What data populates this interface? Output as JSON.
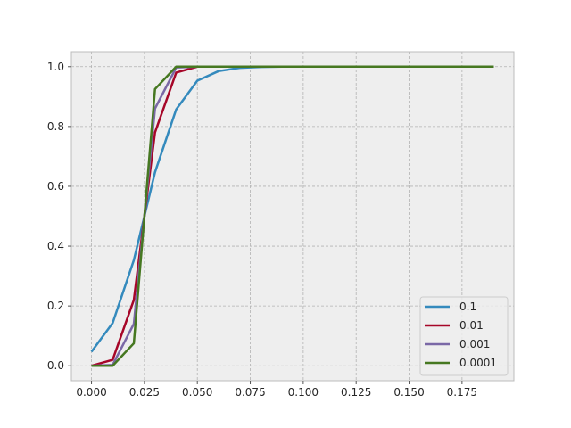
{
  "chart_data": {
    "type": "line",
    "title": "",
    "xlabel": "",
    "ylabel": "",
    "xlim": [
      -0.0095,
      0.1995
    ],
    "ylim": [
      -0.05,
      1.05
    ],
    "grid": true,
    "legend_position": "lower-right",
    "x_ticks": [
      0.0,
      0.025,
      0.05,
      0.075,
      0.1,
      0.125,
      0.15,
      0.175
    ],
    "x_tick_labels": [
      "0.000",
      "0.025",
      "0.050",
      "0.075",
      "0.100",
      "0.125",
      "0.150",
      "0.175"
    ],
    "y_ticks": [
      0.0,
      0.2,
      0.4,
      0.6,
      0.8,
      1.0
    ],
    "y_tick_labels": [
      "0.0",
      "0.2",
      "0.4",
      "0.6",
      "0.8",
      "1.0"
    ],
    "x": [
      0.0,
      0.01,
      0.02,
      0.03,
      0.04,
      0.05,
      0.06,
      0.07,
      0.08,
      0.09,
      0.1,
      0.11,
      0.12,
      0.13,
      0.14,
      0.15,
      0.16,
      0.17,
      0.18,
      0.19
    ],
    "series": [
      {
        "name": "0.1",
        "color": "#348ABD",
        "values": [
          0.047,
          0.143,
          0.353,
          0.647,
          0.857,
          0.953,
          0.985,
          0.996,
          0.999,
          1.0,
          1.0,
          1.0,
          1.0,
          1.0,
          1.0,
          1.0,
          1.0,
          1.0,
          1.0,
          1.0
        ]
      },
      {
        "name": "0.01",
        "color": "#A60628",
        "values": [
          0.0,
          0.02,
          0.22,
          0.78,
          0.98,
          1.0,
          1.0,
          1.0,
          1.0,
          1.0,
          1.0,
          1.0,
          1.0,
          1.0,
          1.0,
          1.0,
          1.0,
          1.0,
          1.0,
          1.0
        ]
      },
      {
        "name": "0.001",
        "color": "#7A68A6",
        "values": [
          0.0,
          0.003,
          0.14,
          0.86,
          0.997,
          1.0,
          1.0,
          1.0,
          1.0,
          1.0,
          1.0,
          1.0,
          1.0,
          1.0,
          1.0,
          1.0,
          1.0,
          1.0,
          1.0,
          1.0
        ]
      },
      {
        "name": "0.0001",
        "color": "#467821",
        "values": [
          0.0,
          0.0,
          0.075,
          0.925,
          1.0,
          1.0,
          1.0,
          1.0,
          1.0,
          1.0,
          1.0,
          1.0,
          1.0,
          1.0,
          1.0,
          1.0,
          1.0,
          1.0,
          1.0,
          1.0
        ]
      }
    ]
  }
}
